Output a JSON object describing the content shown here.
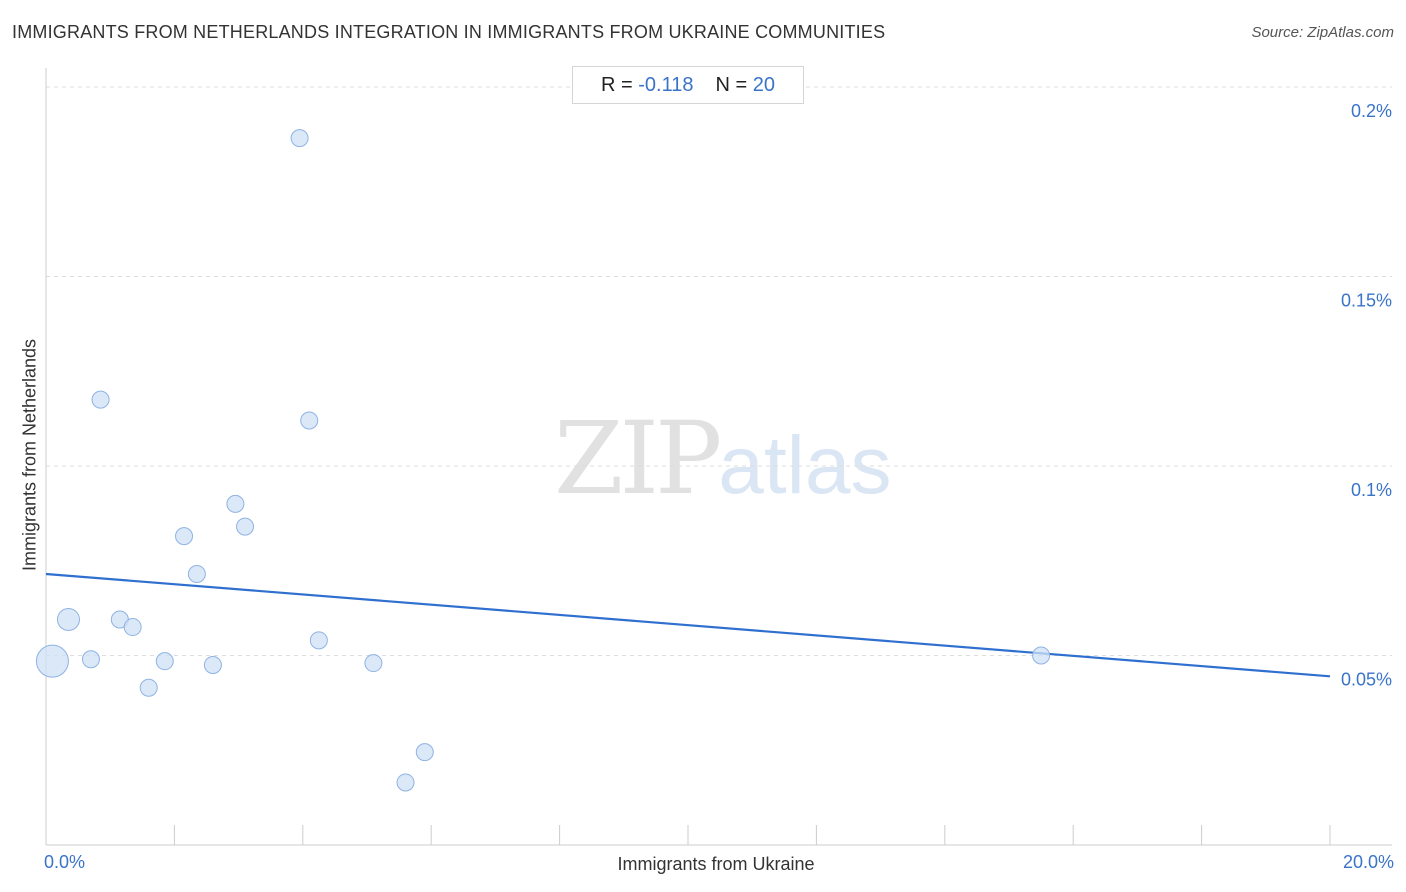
{
  "title": "IMMIGRANTS FROM NETHERLANDS INTEGRATION IN IMMIGRANTS FROM UKRAINE COMMUNITIES",
  "source": "Source: ZipAtlas.com",
  "stats": {
    "r_label": "R =",
    "r_value": "-0.118",
    "n_label": "N =",
    "n_value": "20"
  },
  "watermark": {
    "zip": "ZIP",
    "atlas": "atlas"
  },
  "colors": {
    "accent": "#3a74c9",
    "dot_fill": "#cfe0f6",
    "dot_stroke": "#8fb3e3",
    "trend": "#2f6fcf",
    "grid": "#dddddd"
  },
  "chart_data": {
    "type": "scatter",
    "title": "IMMIGRANTS FROM NETHERLANDS INTEGRATION IN IMMIGRANTS FROM UKRAINE COMMUNITIES",
    "xlabel": "Immigrants from Ukraine",
    "ylabel": "Immigrants from Netherlands",
    "x_ticks": [
      "0.0%",
      "20.0%"
    ],
    "y_ticks": [
      {
        "value": 0.05,
        "label": "0.05%"
      },
      {
        "value": 0.1,
        "label": "0.1%"
      },
      {
        "value": 0.15,
        "label": "0.15%"
      },
      {
        "value": 0.2,
        "label": "0.2%"
      }
    ],
    "xlim": [
      0,
      20
    ],
    "ylim": [
      0.0,
      0.205
    ],
    "grid": true,
    "points": [
      {
        "x": 0.1,
        "y": 0.0485,
        "size": 3
      },
      {
        "x": 0.35,
        "y": 0.0595,
        "size": 2
      },
      {
        "x": 0.7,
        "y": 0.049,
        "size": 1
      },
      {
        "x": 0.85,
        "y": 0.1175,
        "size": 1
      },
      {
        "x": 1.15,
        "y": 0.0595,
        "size": 1
      },
      {
        "x": 1.35,
        "y": 0.0575,
        "size": 1
      },
      {
        "x": 1.6,
        "y": 0.0415,
        "size": 1
      },
      {
        "x": 1.85,
        "y": 0.0485,
        "size": 1
      },
      {
        "x": 2.15,
        "y": 0.0815,
        "size": 1
      },
      {
        "x": 2.35,
        "y": 0.0715,
        "size": 1
      },
      {
        "x": 2.6,
        "y": 0.0475,
        "size": 1
      },
      {
        "x": 2.95,
        "y": 0.09,
        "size": 1
      },
      {
        "x": 3.1,
        "y": 0.084,
        "size": 1
      },
      {
        "x": 3.95,
        "y": 0.1865,
        "size": 1
      },
      {
        "x": 4.1,
        "y": 0.112,
        "size": 1
      },
      {
        "x": 4.25,
        "y": 0.054,
        "size": 1
      },
      {
        "x": 5.1,
        "y": 0.048,
        "size": 1
      },
      {
        "x": 5.6,
        "y": 0.0165,
        "size": 1
      },
      {
        "x": 5.9,
        "y": 0.0245,
        "size": 1
      },
      {
        "x": 15.5,
        "y": 0.05,
        "size": 1
      }
    ],
    "trendline": {
      "x": [
        0,
        20
      ],
      "y": [
        0.0715,
        0.0445
      ]
    }
  }
}
